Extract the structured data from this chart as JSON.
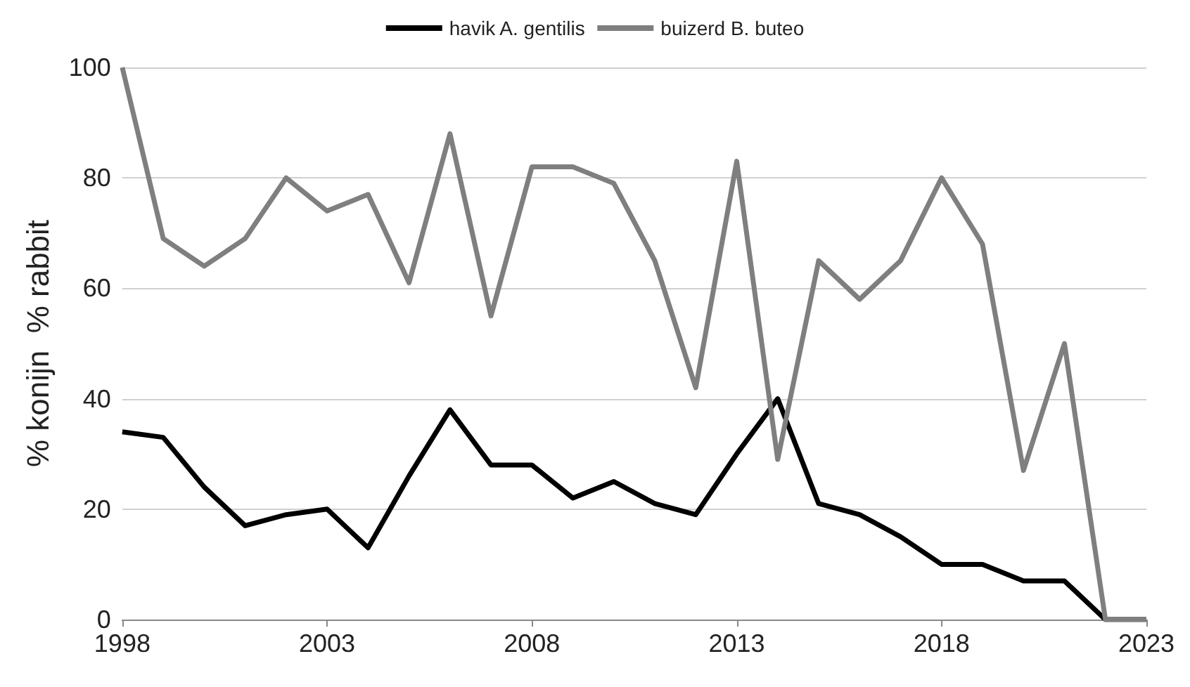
{
  "chart_data": {
    "type": "line",
    "ylabel": "% konijn  % rabbit",
    "x": [
      1998,
      1999,
      2000,
      2001,
      2002,
      2003,
      2004,
      2005,
      2006,
      2007,
      2008,
      2009,
      2010,
      2011,
      2012,
      2013,
      2014,
      2015,
      2016,
      2017,
      2018,
      2019,
      2020,
      2021,
      2022,
      2023
    ],
    "series": [
      {
        "name": "havik A. gentilis",
        "color": "#000000",
        "values": [
          34,
          33,
          24,
          17,
          19,
          20,
          13,
          26,
          38,
          28,
          28,
          22,
          25,
          21,
          19,
          30,
          40,
          21,
          19,
          15,
          10,
          10,
          7,
          7,
          0,
          0
        ]
      },
      {
        "name": "buizerd B. buteo",
        "color": "#7f7f7f",
        "values": [
          100,
          69,
          64,
          69,
          80,
          74,
          77,
          61,
          88,
          55,
          82,
          82,
          79,
          65,
          42,
          83,
          29,
          65,
          58,
          65,
          80,
          68,
          27,
          50,
          0,
          0
        ]
      }
    ],
    "xlim": [
      1998,
      2023
    ],
    "xticks": [
      1998,
      2003,
      2008,
      2013,
      2018,
      2023
    ],
    "ylim": [
      0,
      100
    ],
    "yticks": [
      0,
      20,
      40,
      60,
      80,
      100
    ],
    "grid": "y",
    "legend": "top",
    "marker": "none",
    "line_style": "solid"
  }
}
